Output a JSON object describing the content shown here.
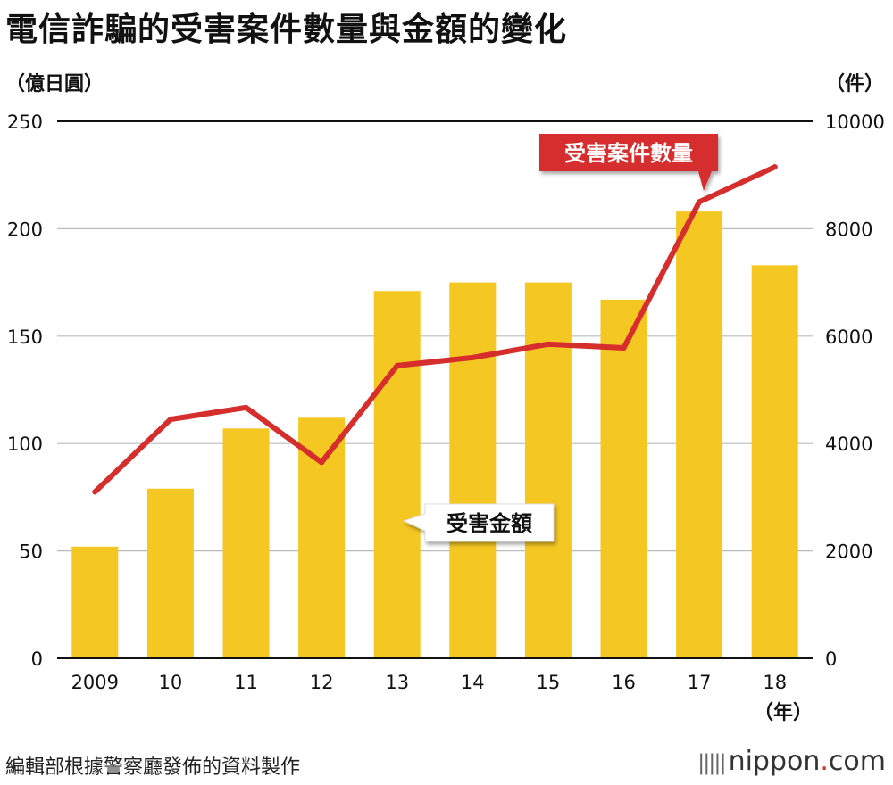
{
  "chart_data": {
    "type": "bar+line",
    "title": "電信詐騙的受害案件數量與金額的變化",
    "categories": [
      "2009",
      "10",
      "11",
      "12",
      "13",
      "14",
      "15",
      "16",
      "17",
      "18"
    ],
    "xlabel_unit": "（年）",
    "left_axis": {
      "unit": "（億日圓）",
      "ylim": [
        0,
        250
      ],
      "ticks": [
        "0",
        "50",
        "100",
        "150",
        "200",
        "250"
      ],
      "tick_values": [
        0,
        50,
        100,
        150,
        200,
        250
      ]
    },
    "right_axis": {
      "unit": "（件）",
      "ylim": [
        0,
        10000
      ],
      "ticks": [
        "0",
        "2000",
        "4000",
        "6000",
        "8000",
        "10000"
      ],
      "tick_values": [
        0,
        2000,
        4000,
        6000,
        8000,
        10000
      ]
    },
    "series": [
      {
        "name": "受害金額",
        "type": "bar",
        "axis": "left",
        "color": "#f5c722",
        "values": [
          52,
          79,
          107,
          112,
          171,
          175,
          175,
          167,
          208,
          183
        ]
      },
      {
        "name": "受害案件數量",
        "type": "line",
        "axis": "right",
        "color": "#d62d2d",
        "values": [
          3100,
          4450,
          4670,
          3650,
          5450,
          5600,
          5850,
          5780,
          8500,
          9150
        ]
      }
    ],
    "grid": true
  },
  "labels": {
    "line_label": "受害案件數量",
    "bar_label": "受害金額"
  },
  "footer": {
    "source": "編輯部根據警察廳發佈的資料製作",
    "brand_name": "nippon",
    "brand_dot": ".",
    "brand_suffix": "com"
  },
  "colors": {
    "bar": "#f5c722",
    "line": "#d62d2d",
    "grid": "#bbbbbb"
  }
}
